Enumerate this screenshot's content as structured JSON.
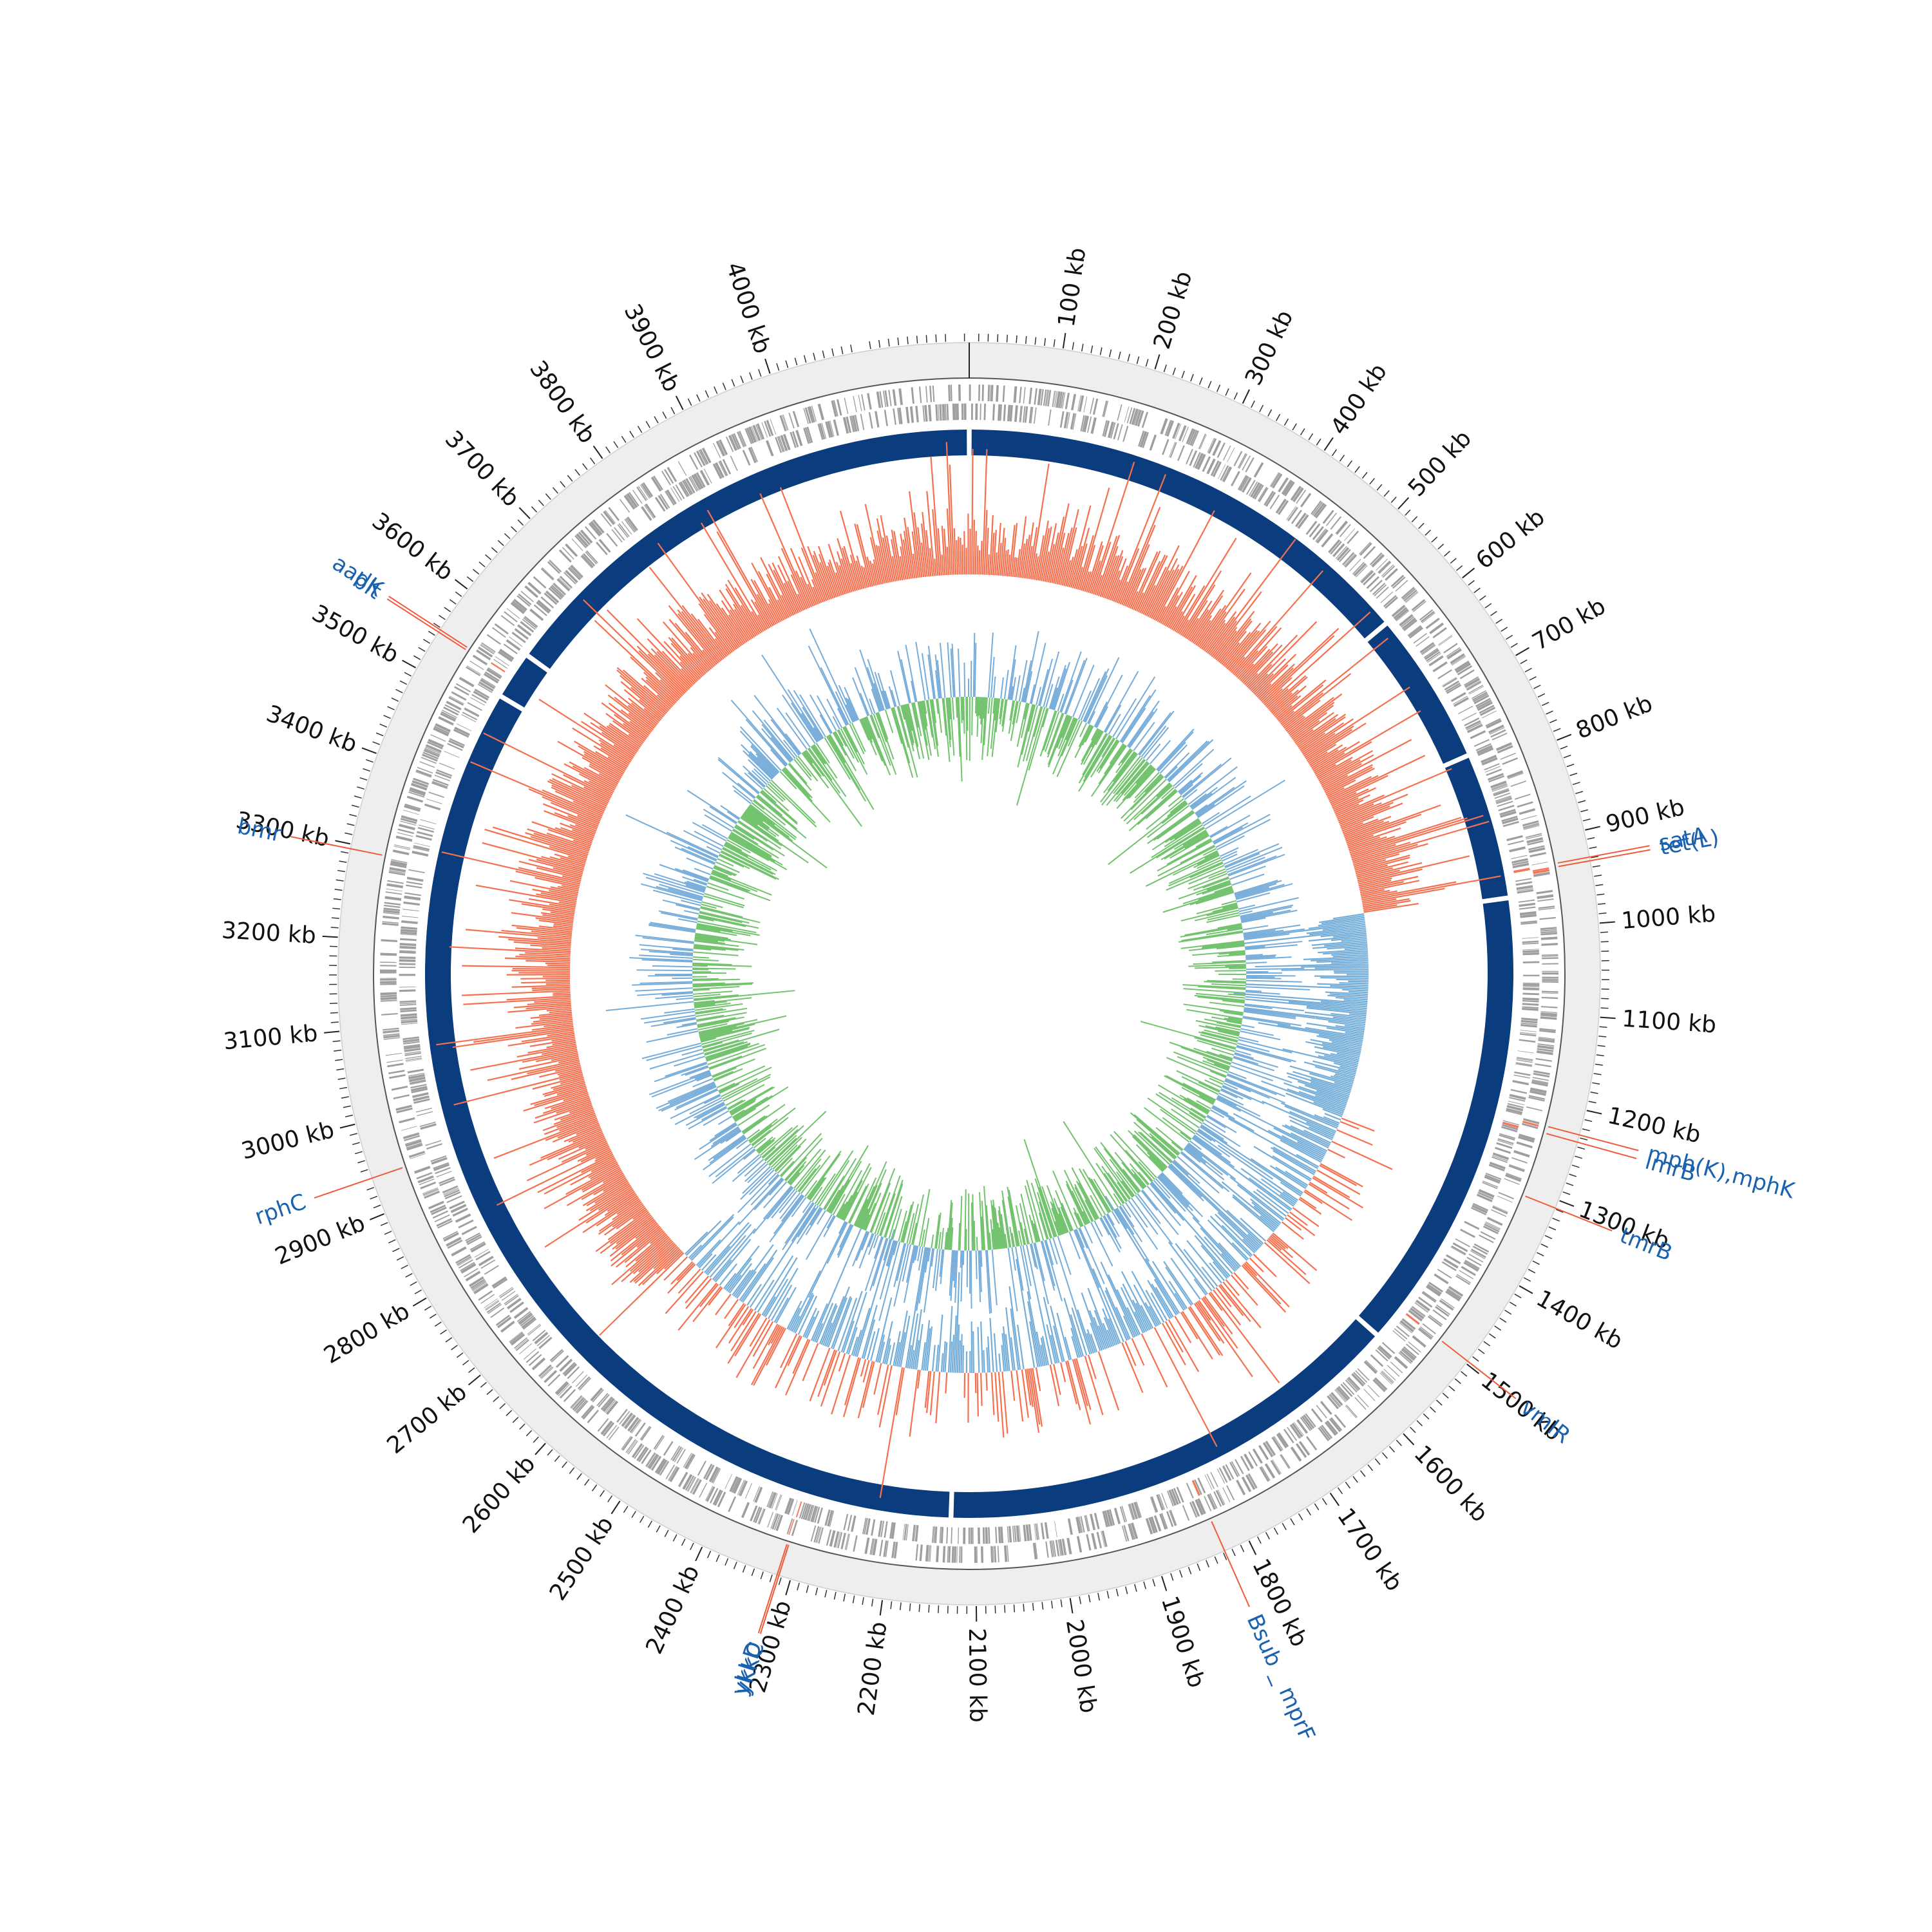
{
  "genome_length_kb": 4215,
  "colors": {
    "outer_band": "#eeeeee",
    "ring_stroke": "#555555",
    "cds": "#9e9e9e",
    "cds_highlight": "#f4775a",
    "contig": "#0b3d7e",
    "gc_content_above": "#f5704e",
    "gc_content_below": "#74aed8",
    "gc_skew_inner": "#72c26e",
    "gc_skew_outer": "#76acd9",
    "label_line": "#f05a3a",
    "label_text": "#1a62b0",
    "tick_text": "#111111"
  },
  "scale": {
    "major_tick_interval_kb": 100,
    "tick_labels": [
      "100 kb",
      "200 kb",
      "300 kb",
      "400 kb",
      "500 kb",
      "600 kb",
      "700 kb",
      "800 kb",
      "900 kb",
      "1000 kb",
      "1100 kb",
      "1200 kb",
      "1300 kb",
      "1400 kb",
      "1500 kb",
      "1600 kb",
      "1700 kb",
      "1800 kb",
      "1900 kb",
      "2000 kb",
      "2100 kb",
      "2200 kb",
      "2300 kb",
      "2400 kb",
      "2500 kb",
      "2600 kb",
      "2700 kb",
      "2800 kb",
      "2900 kb",
      "3000 kb",
      "3100 kb",
      "3200 kb",
      "3300 kb",
      "3400 kb",
      "3500 kb",
      "3600 kb",
      "3700 kb",
      "3800 kb",
      "3900 kb",
      "4000 kb"
    ]
  },
  "contig_breaks_kb": [
    0,
    585,
    777,
    960,
    1540,
    2130,
    3520,
    3580
  ],
  "gene_annotations": [
    {
      "name": "satA",
      "position_kb": 929,
      "label_side": "right"
    },
    {
      "name": "tet(L)",
      "position_kb": 933,
      "label_side": "right"
    },
    {
      "name": "mph(K),mphK",
      "position_kb": 1227,
      "label_side": "right"
    },
    {
      "name": "lmrB",
      "position_kb": 1235,
      "label_side": "right"
    },
    {
      "name": "tmrB",
      "position_kb": 1309,
      "label_side": "right"
    },
    {
      "name": "vmlR",
      "position_kb": 1497,
      "label_side": "right"
    },
    {
      "name": "Bsub _ mprF",
      "position_kb": 1828,
      "label_side": "bottom"
    },
    {
      "name": "ykkD",
      "position_kb": 2315,
      "label_side": "bottom"
    },
    {
      "name": "ykkC",
      "position_kb": 2313,
      "label_side": "bottom"
    },
    {
      "name": "rphC",
      "position_kb": 2940,
      "label_side": "left"
    },
    {
      "name": "bmr",
      "position_kb": 3295,
      "label_side": "left"
    },
    {
      "name": "blt",
      "position_kb": 3545,
      "label_side": "left"
    },
    {
      "name": "aadK",
      "position_kb": 3548,
      "label_side": "left"
    }
  ]
}
